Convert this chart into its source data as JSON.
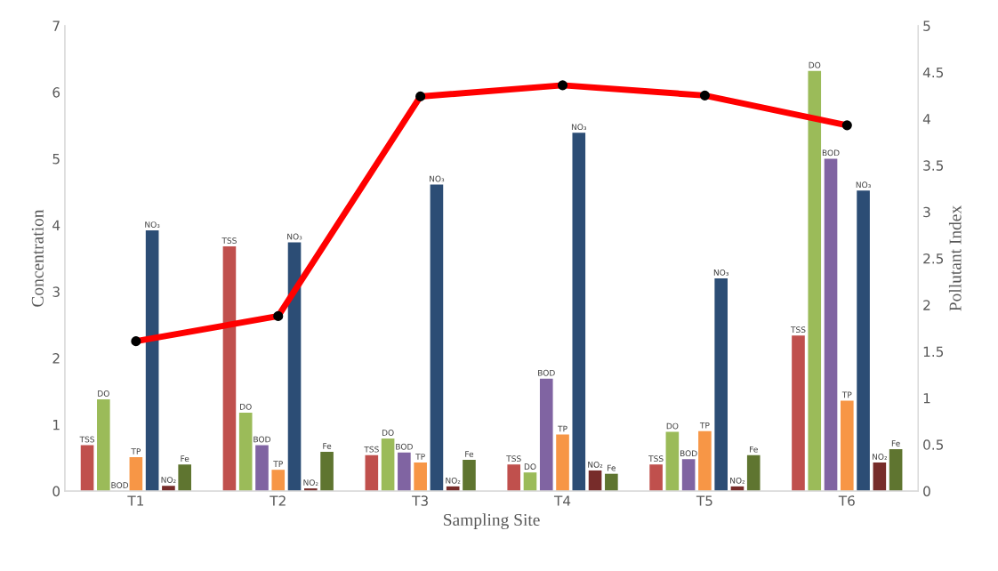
{
  "chart_data": {
    "type": "bar",
    "xlabel": "Sampling Site",
    "ylabel": "Concentration",
    "y2label": "Pollutant Index",
    "categories": [
      "T1",
      "T2",
      "T3",
      "T4",
      "T5",
      "T6"
    ],
    "ylim": [
      0,
      7
    ],
    "yticks": [
      0,
      1,
      2,
      3,
      4,
      5,
      6,
      7
    ],
    "y2lim": [
      0,
      5
    ],
    "y2ticks": [
      0,
      0.5,
      1,
      1.5,
      2,
      2.5,
      3,
      3.5,
      4,
      4.5,
      5
    ],
    "grid": false,
    "legend": false,
    "series": [
      {
        "name": "TSS",
        "color": "#c0504d",
        "values": [
          0.69,
          3.68,
          0.54,
          0.4,
          0.4,
          2.34
        ]
      },
      {
        "name": "DO",
        "color": "#9bbb59",
        "values": [
          1.38,
          1.18,
          0.79,
          0.28,
          0.89,
          6.32
        ]
      },
      {
        "name": "BOD",
        "color": "#8064a2",
        "values": [
          0,
          0.69,
          0.58,
          1.69,
          0.48,
          5.0
        ]
      },
      {
        "name": "TP",
        "color": "#f79646",
        "values": [
          0.51,
          0.32,
          0.43,
          0.85,
          0.9,
          1.36
        ]
      },
      {
        "name": "NO₃",
        "color": "#2c4d75",
        "values": [
          3.92,
          3.74,
          4.61,
          5.39,
          3.2,
          4.52
        ]
      },
      {
        "name": "NO₂",
        "color": "#772c2a",
        "values": [
          0.08,
          0.04,
          0.07,
          0.31,
          0.07,
          0.43
        ]
      },
      {
        "name": "Fe",
        "color": "#5f7530",
        "values": [
          0.4,
          0.59,
          0.47,
          0.26,
          0.54,
          0.63
        ]
      },
      {
        "type": "line",
        "axis": "y2",
        "color": "#ff0000",
        "marker": "circle",
        "values": [
          1.61,
          1.88,
          4.24,
          4.36,
          4.25,
          3.93
        ]
      }
    ]
  }
}
